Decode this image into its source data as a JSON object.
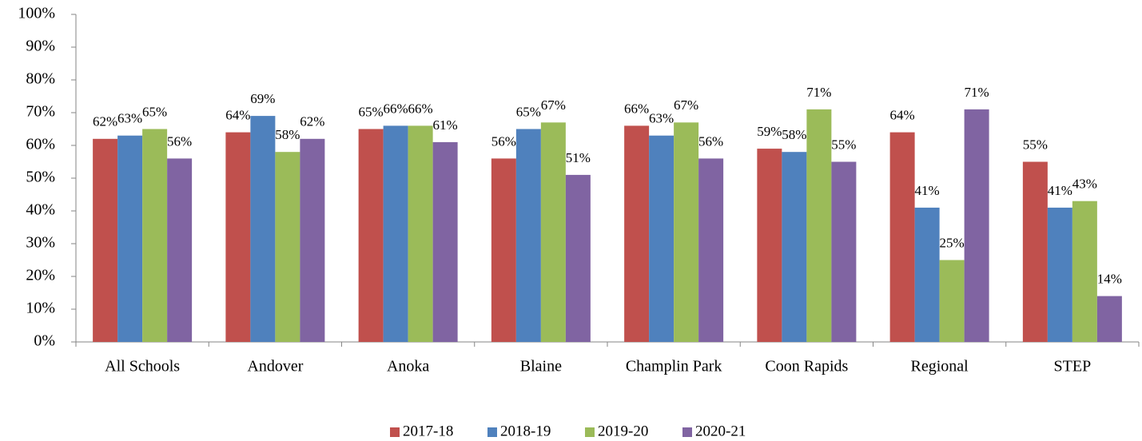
{
  "chart_data": {
    "type": "bar",
    "categories": [
      "All Schools",
      "Andover",
      "Anoka",
      "Blaine",
      "Champlin Park",
      "Coon Rapids",
      "Regional",
      "STEP"
    ],
    "series": [
      {
        "name": "2017-18",
        "color": "#c0504d",
        "values": [
          62,
          64,
          65,
          56,
          66,
          59,
          64,
          55
        ],
        "value_labels": [
          "62%",
          "64%",
          "65%",
          "56%",
          "66%",
          "59%",
          "64%",
          "55%"
        ]
      },
      {
        "name": "2018-19",
        "color": "#4f81bd",
        "values": [
          63,
          69,
          66,
          65,
          63,
          58,
          41,
          41
        ],
        "value_labels": [
          "63%",
          "69%",
          "66%",
          "65%",
          "63%",
          "58%",
          "41%",
          "41%"
        ]
      },
      {
        "name": "2019-20",
        "color": "#9bbb59",
        "values": [
          65,
          58,
          66,
          67,
          67,
          71,
          25,
          43
        ],
        "value_labels": [
          "65%",
          "58%",
          "66%",
          "67%",
          "67%",
          "71%",
          "25%",
          "43%"
        ]
      },
      {
        "name": "2020-21",
        "color": "#8064a2",
        "values": [
          56,
          62,
          61,
          51,
          56,
          55,
          71,
          14
        ],
        "value_labels": [
          "56%",
          "62%",
          "61%",
          "51%",
          "56%",
          "55%",
          "71%",
          "14%"
        ]
      }
    ],
    "ylim": [
      0,
      100
    ],
    "yticks": [
      {
        "value": 0,
        "label": "0%"
      },
      {
        "value": 10,
        "label": "10%"
      },
      {
        "value": 20,
        "label": "20%"
      },
      {
        "value": 30,
        "label": "30%"
      },
      {
        "value": 40,
        "label": "40%"
      },
      {
        "value": 50,
        "label": "50%"
      },
      {
        "value": 60,
        "label": "60%"
      },
      {
        "value": 70,
        "label": "70%"
      },
      {
        "value": 80,
        "label": "80%"
      },
      {
        "value": 90,
        "label": "90%"
      },
      {
        "value": 100,
        "label": "100%"
      }
    ],
    "legend": "bottom"
  }
}
